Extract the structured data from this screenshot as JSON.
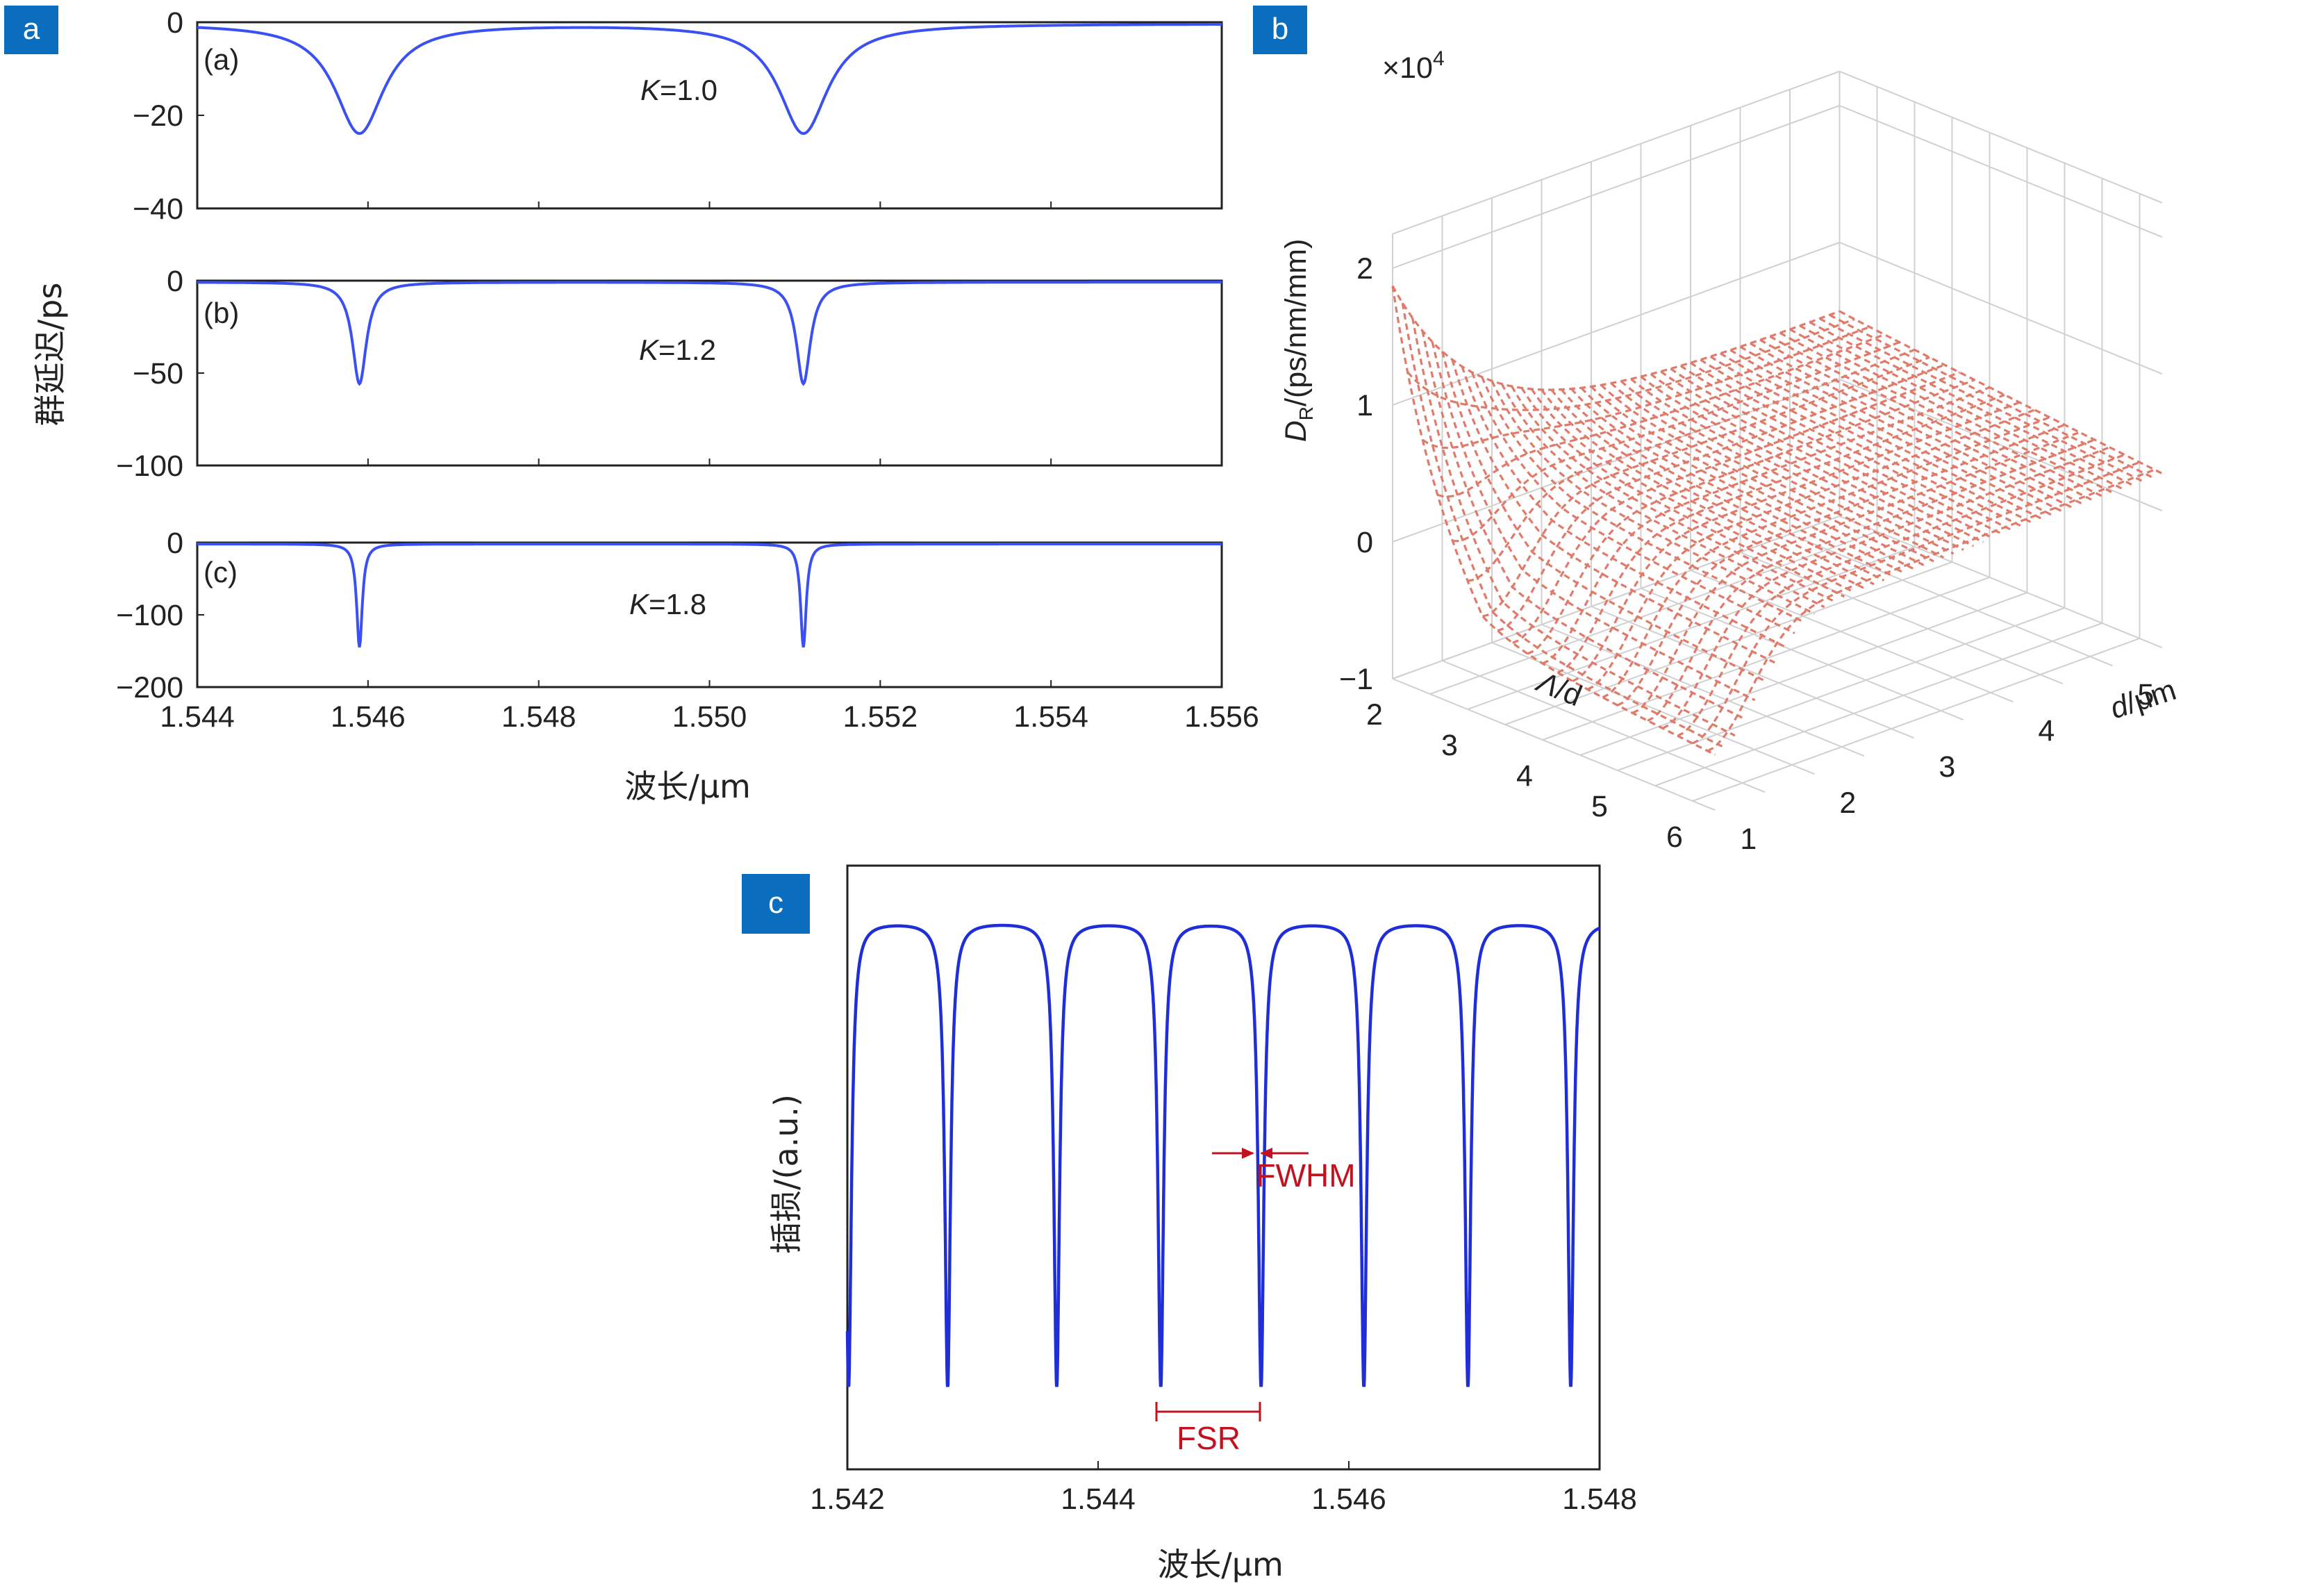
{
  "colors": {
    "label_bg": "#0a6dbd",
    "delay_curve": "#3b50f2",
    "mesh": "#e07a6a",
    "insertion_curve": "#1f2ed6",
    "annotation": "#c1121f",
    "grid": "#d0d0d0"
  },
  "panel_labels": {
    "a": "a",
    "b": "b",
    "c": "c"
  },
  "chart_data": [
    {
      "id": "a",
      "type": "line",
      "ylabel": "群延迟/ps",
      "xlabel": "波长/μm",
      "xlim": [
        1.544,
        1.556
      ],
      "xticks": [
        "1.544",
        "1.546",
        "1.548",
        "1.550",
        "1.552",
        "1.554",
        "1.556"
      ],
      "resonances": [
        1.5459,
        1.5511
      ],
      "subplots": [
        {
          "tag": "(a)",
          "k_prefix": "K",
          "k_value": "=1.0",
          "ylim": [
            -40,
            0
          ],
          "yticks": [
            "0",
            "−20",
            "−40"
          ],
          "min_delay": -23.5,
          "width": 0.00035
        },
        {
          "tag": "(b)",
          "k_prefix": "K",
          "k_value": "=1.2",
          "ylim": [
            -100,
            0
          ],
          "yticks": [
            "0",
            "−50",
            "−100"
          ],
          "min_delay": -55,
          "width": 0.0001
        },
        {
          "tag": "(c)",
          "k_prefix": "K",
          "k_value": "=1.8",
          "ylim": [
            -200,
            0
          ],
          "yticks": [
            "0",
            "−100",
            "−200"
          ],
          "min_delay": -143,
          "width": 4e-05
        }
      ]
    },
    {
      "id": "b",
      "type": "surface",
      "zlabel_main": "D",
      "zlabel_sub": "R",
      "zlabel_rest": "/(ps/nm/mm)",
      "z_multiplier_base": "×10",
      "z_multiplier_exp": "4",
      "zlim": [
        -1,
        2
      ],
      "zticks": [
        "2",
        "1",
        "0",
        "−1"
      ],
      "xlabel_sym": "Λ",
      "xlabel_rest": "/d",
      "xticks": [
        "2",
        "3",
        "4",
        "5",
        "6"
      ],
      "ylabel_sym": "d",
      "ylabel_rest": "/μm",
      "yticks": [
        "1",
        "2",
        "3",
        "4",
        "5"
      ]
    },
    {
      "id": "c",
      "type": "line",
      "ylabel": "插损/(a.u.)",
      "xlabel": "波长/μm",
      "xlim": [
        1.542,
        1.548
      ],
      "xticks": [
        "1.542",
        "1.544",
        "1.546",
        "1.548"
      ],
      "dips": [
        1.54201,
        1.5428,
        1.54367,
        1.5445,
        1.5453,
        1.54612,
        1.54695,
        1.54777
      ],
      "annotations": {
        "fwhm": "FWHM",
        "fsr": "FSR"
      }
    }
  ]
}
